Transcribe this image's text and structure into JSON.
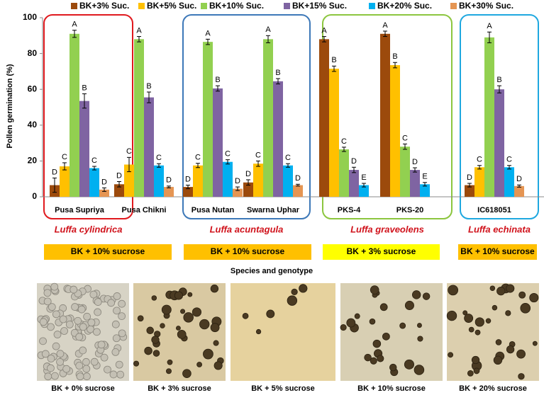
{
  "chart_data": {
    "type": "bar",
    "y_label": "Pollen germination (%)",
    "x_label": "Species and genotype",
    "categories": [
      "Pusa Supriya",
      "Pusa Chikni",
      "Pusa Nutan",
      "Swarna Uphar",
      "PKS-4",
      "PKS-20",
      "IC618051"
    ],
    "series": [
      {
        "name": "BK+3% Suc.",
        "color": "#9c4a0c",
        "values": [
          6.5,
          7,
          5.5,
          8,
          88,
          91,
          6.5
        ],
        "errors": [
          4,
          1.5,
          1,
          1.5,
          1.5,
          1.5,
          1
        ],
        "letters": [
          "D",
          "D",
          "D",
          "D",
          "A",
          "A",
          "D"
        ]
      },
      {
        "name": "BK+5% Suc.",
        "color": "#ffc000",
        "values": [
          17,
          18,
          17.5,
          18.5,
          71.5,
          73.5,
          16.5
        ],
        "errors": [
          2,
          4,
          1.2,
          1.5,
          1.5,
          1.5,
          1
        ],
        "letters": [
          "C",
          "C",
          "C",
          "C",
          "B",
          "B",
          "C"
        ]
      },
      {
        "name": "BK+10% Suc.",
        "color": "#92d050",
        "values": [
          91,
          88,
          86.5,
          88,
          26.5,
          28,
          89
        ],
        "errors": [
          2,
          1.5,
          1.5,
          2,
          1.2,
          1.5,
          3
        ],
        "letters": [
          "A",
          "A",
          "A",
          "A",
          "C",
          "C",
          "A"
        ]
      },
      {
        "name": "BK+15% Suc.",
        "color": "#7f64a2",
        "values": [
          53.5,
          55.5,
          60.5,
          64.5,
          15,
          15,
          60
        ],
        "errors": [
          4,
          3,
          1.5,
          1.5,
          1.5,
          1.2,
          2
        ],
        "letters": [
          "B",
          "B",
          "B",
          "B",
          "D",
          "D",
          "B"
        ]
      },
      {
        "name": "BK+20% Suc.",
        "color": "#00b0f0",
        "values": [
          16,
          17.5,
          19.5,
          17.5,
          6.5,
          7,
          16.5
        ],
        "errors": [
          1,
          1,
          1.2,
          1,
          1,
          1,
          1
        ],
        "letters": [
          "C",
          "C",
          "C",
          "C",
          "E",
          "E",
          "C"
        ]
      },
      {
        "name": "BK+30% Suc.",
        "color": "#e59553",
        "values": [
          4,
          5.5,
          4.5,
          6.5,
          null,
          null,
          6
        ],
        "errors": [
          1,
          0.5,
          1,
          0.5,
          null,
          null,
          0.6
        ],
        "letters": [
          "D",
          "D",
          "D",
          "D",
          null,
          null,
          "D"
        ]
      }
    ],
    "ylim": [
      0,
      100
    ],
    "yticks": [
      0,
      20,
      40,
      60,
      80,
      100
    ],
    "grid": false,
    "legend": "top"
  },
  "groups": [
    {
      "species": "Luffa cylindrica",
      "treatment": "BK + 10% sucrose",
      "box_color": "#e0191e",
      "treatment_color": "#ffc000"
    },
    {
      "species": "Luffa acuntagula",
      "treatment": "BK + 10% sucrose",
      "box_color": "#3d78b8",
      "treatment_color": "#ffc000"
    },
    {
      "species": "Luffa graveolens",
      "treatment": "BK + 3% sucrose",
      "box_color": "#8cc63f",
      "treatment_color": "#ffff00"
    },
    {
      "species": "Luffa echinata",
      "treatment": "BK + 10% sucrose",
      "box_color": "#1fa8e0",
      "treatment_color": "#ffc000"
    }
  ],
  "photos": [
    {
      "caption": "BK + 0% sucrose"
    },
    {
      "caption": "BK + 3% sucrose"
    },
    {
      "caption": "BK + 5% sucrose"
    },
    {
      "caption": "BK + 10% sucrose"
    },
    {
      "caption": "BK + 20% sucrose"
    }
  ]
}
